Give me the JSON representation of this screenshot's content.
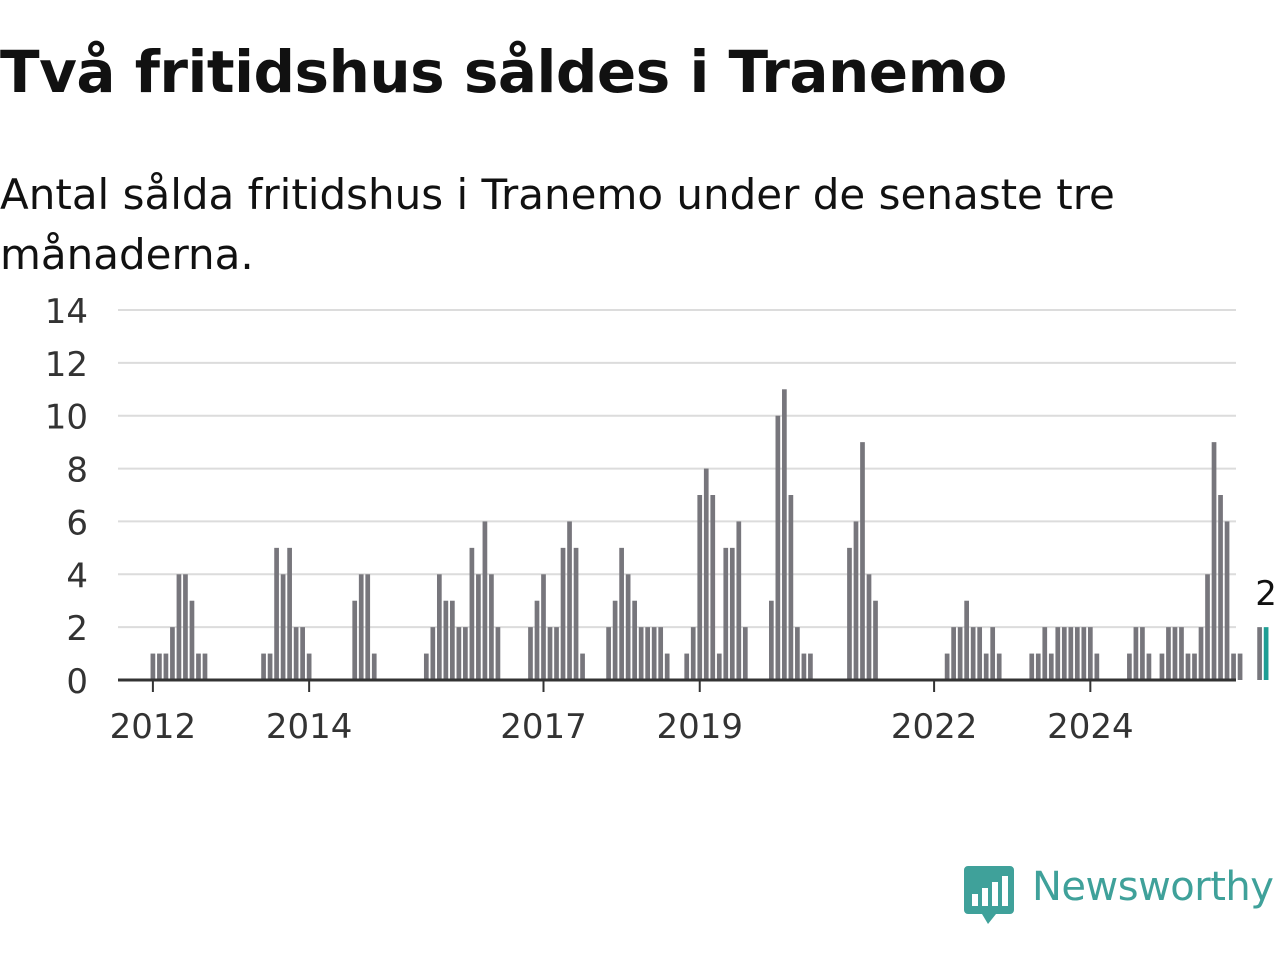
{
  "title": "Två fritidshus såldes i Tranemo",
  "subtitle": "Antal sålda fritidshus i Tranemo under de senaste tre månaderna.",
  "brand": {
    "name": "Newsworthy",
    "color": "#3fa19a"
  },
  "chart_data": {
    "type": "bar",
    "x_start": "2011-08",
    "x_unit": "month",
    "ylim": [
      0,
      14
    ],
    "y_ticks": [
      0,
      2,
      4,
      6,
      8,
      10,
      12,
      14
    ],
    "x_ticks": [
      {
        "label": "2012",
        "month": "2012-01"
      },
      {
        "label": "2014",
        "month": "2014-01"
      },
      {
        "label": "2017",
        "month": "2017-01"
      },
      {
        "label": "2019",
        "month": "2019-01"
      },
      {
        "label": "2022",
        "month": "2022-01"
      },
      {
        "label": "2024",
        "month": "2024-01"
      }
    ],
    "grid": true,
    "colors": {
      "bar": "#77767c",
      "highlight": "#1f9e94",
      "grid": "#dcdcdc",
      "axis": "#333333"
    },
    "highlight_label": "2",
    "values": [
      0,
      0,
      0,
      0,
      0,
      1,
      1,
      1,
      2,
      4,
      4,
      3,
      1,
      1,
      0,
      0,
      0,
      0,
      0,
      0,
      0,
      0,
      1,
      1,
      5,
      4,
      5,
      2,
      2,
      1,
      0,
      0,
      0,
      0,
      0,
      0,
      3,
      4,
      4,
      1,
      0,
      0,
      0,
      0,
      0,
      0,
      0,
      1,
      2,
      4,
      3,
      3,
      2,
      2,
      5,
      4,
      6,
      4,
      2,
      0,
      0,
      0,
      0,
      2,
      3,
      4,
      2,
      2,
      5,
      6,
      5,
      1,
      0,
      0,
      0,
      2,
      3,
      5,
      4,
      3,
      2,
      2,
      2,
      2,
      1,
      0,
      0,
      1,
      2,
      7,
      8,
      7,
      1,
      5,
      5,
      6,
      2,
      0,
      0,
      0,
      3,
      10,
      11,
      7,
      2,
      1,
      1,
      0,
      0,
      0,
      0,
      0,
      5,
      6,
      9,
      4,
      3,
      0,
      0,
      0,
      0,
      0,
      0,
      0,
      0,
      0,
      0,
      1,
      2,
      2,
      3,
      2,
      2,
      1,
      2,
      1,
      0,
      0,
      0,
      0,
      1,
      1,
      2,
      1,
      2,
      2,
      2,
      2,
      2,
      2,
      1,
      0,
      0,
      0,
      0,
      1,
      2,
      2,
      1,
      0,
      1,
      2,
      2,
      2,
      1,
      1,
      2,
      4,
      9,
      7,
      6,
      1,
      1,
      0,
      0,
      2,
      2
    ]
  }
}
